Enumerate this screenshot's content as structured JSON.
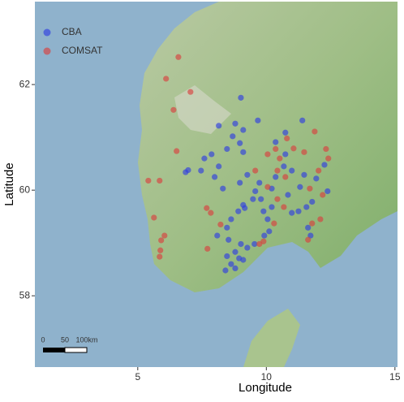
{
  "chart_data": {
    "type": "scatter",
    "x_label": "Longitude",
    "y_label": "Latitude",
    "xlim": [
      1.0,
      15.1
    ],
    "ylim": [
      56.65,
      63.57
    ],
    "xticks": [
      5,
      10,
      15
    ],
    "yticks": [
      58,
      60,
      62
    ],
    "grid": false,
    "legend": "top-left",
    "series": [
      {
        "name": "CBA",
        "color": "#2f3fe0",
        "x": [
          9.01,
          8.15,
          8.79,
          9.1,
          8.69,
          9.67,
          8.97,
          8.47,
          9.1,
          7.87,
          7.59,
          6.96,
          6.86,
          7.46,
          8.15,
          7.99,
          8.31,
          8.97,
          9.26,
          9.73,
          9.57,
          9.48,
          9.1,
          9.16,
          8.91,
          8.63,
          8.47,
          8.09,
          8.53,
          9.01,
          9.26,
          8.79,
          8.47,
          8.94,
          8.63,
          8.79,
          8.41,
          9.1,
          9.54,
          9.92,
          10.11,
          10.05,
          9.89,
          9.79,
          10.21,
          10.36,
          10.68,
          10.74,
          10.74,
          10.36,
          10.99,
          11.31,
          10.84,
          11.25,
          11.62,
          11.72,
          11.56,
          11.78,
          11.94,
          11.47,
          11.4,
          12.38,
          12.26,
          10.99,
          10.21
        ],
        "values": [
          61.75,
          61.22,
          61.26,
          61.14,
          61.02,
          61.32,
          60.89,
          60.78,
          60.72,
          60.68,
          60.6,
          60.38,
          60.34,
          60.37,
          60.45,
          60.25,
          60.03,
          60.14,
          60.29,
          60.14,
          59.98,
          59.83,
          59.72,
          59.66,
          59.6,
          59.45,
          59.29,
          59.14,
          59.06,
          58.98,
          58.91,
          58.83,
          58.75,
          58.71,
          58.6,
          58.52,
          58.48,
          58.68,
          58.98,
          59.14,
          59.22,
          59.45,
          59.6,
          59.83,
          60.03,
          60.25,
          60.45,
          60.68,
          61.09,
          60.91,
          60.37,
          60.06,
          59.91,
          59.6,
          59.29,
          59.14,
          59.68,
          59.78,
          60.22,
          60.29,
          61.32,
          59.98,
          60.48,
          59.57,
          59.68
        ]
      },
      {
        "name": "COMSAT",
        "color": "#d9413f",
        "x": [
          6.58,
          6.1,
          7.05,
          6.39,
          6.51,
          5.41,
          5.85,
          5.63,
          6.04,
          5.91,
          5.88,
          5.85,
          7.68,
          7.84,
          8.22,
          7.71,
          10.05,
          10.36,
          10.52,
          10.43,
          10.74,
          10.8,
          11.47,
          11.88,
          12.32,
          12.41,
          12.03,
          12.19,
          11.69,
          12.1,
          11.78,
          11.62,
          10.68,
          10.43,
          10.3,
          9.73,
          9.89,
          10.05,
          9.57,
          11.06
        ],
        "values": [
          62.52,
          62.11,
          61.86,
          61.52,
          60.74,
          60.18,
          60.18,
          59.48,
          59.14,
          59.05,
          58.86,
          58.74,
          59.66,
          59.57,
          59.35,
          58.89,
          60.68,
          60.78,
          60.6,
          60.37,
          60.25,
          60.98,
          60.72,
          61.11,
          60.78,
          60.6,
          60.37,
          59.91,
          60.03,
          59.45,
          59.37,
          59.06,
          59.68,
          59.83,
          59.37,
          58.98,
          59.03,
          60.06,
          60.37,
          60.79
        ]
      }
    ],
    "scale_bar": {
      "labels": [
        "0",
        "50",
        "100km"
      ]
    }
  }
}
